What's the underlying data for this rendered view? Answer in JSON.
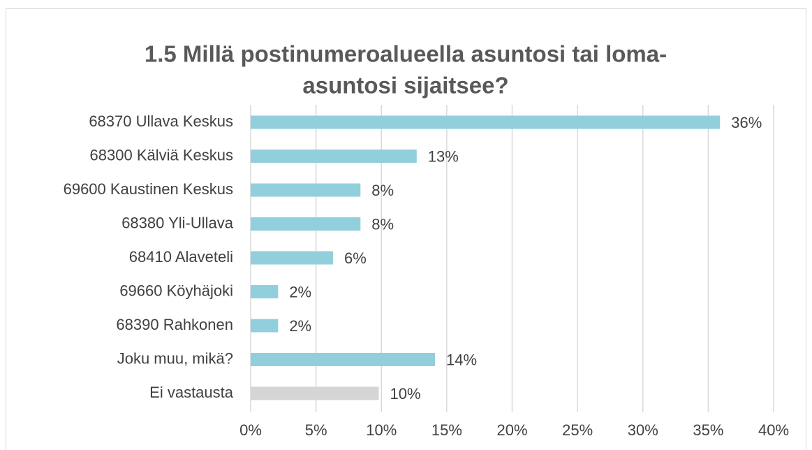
{
  "chart_data": {
    "type": "bar",
    "orientation": "horizontal",
    "title": [
      "1.5 Millä postinumeroalueella asuntosi tai loma-",
      "asuntosi sijaitsee?"
    ],
    "categories": [
      "68370 Ullava Keskus",
      "68300 Kälviä Keskus",
      "69600 Kaustinen Keskus",
      "68380 Yli-Ullava",
      "68410 Alaveteli",
      "69660 Köyhäjoki",
      "68390 Rahkonen",
      "Joku muu, mikä?",
      "Ei vastausta"
    ],
    "values": [
      35.9,
      12.7,
      8.4,
      8.4,
      6.3,
      2.1,
      2.1,
      14.1,
      9.8
    ],
    "value_labels": [
      "36%",
      "13%",
      "8%",
      "8%",
      "6%",
      "2%",
      "2%",
      "14%",
      "10%"
    ],
    "colors": [
      "#92cfdc",
      "#92cfdc",
      "#92cfdc",
      "#92cfdc",
      "#92cfdc",
      "#92cfdc",
      "#92cfdc",
      "#92cfdc",
      "#d5d5d5"
    ],
    "xlim": [
      0,
      40
    ],
    "xticks": [
      {
        "value": 0,
        "label": "0%"
      },
      {
        "value": 5,
        "label": "5%"
      },
      {
        "value": 10,
        "label": "10%"
      },
      {
        "value": 15,
        "label": "15%"
      },
      {
        "value": 20,
        "label": "20%"
      },
      {
        "value": 25,
        "label": "25%"
      },
      {
        "value": 30,
        "label": "30%"
      },
      {
        "value": 35,
        "label": "35%"
      },
      {
        "value": 40,
        "label": "40%"
      }
    ],
    "grid": true
  }
}
